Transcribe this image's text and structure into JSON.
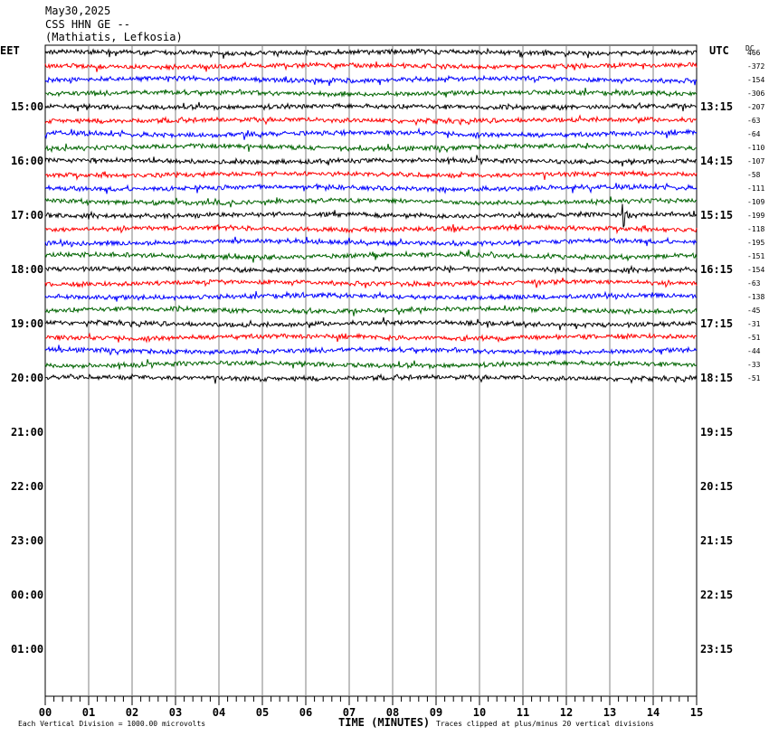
{
  "header": {
    "date": "May30,2025",
    "station": "CSS HHN GE --",
    "location": "(Mathiatis, Lefkosia)"
  },
  "chart_data": {
    "type": "helicorder",
    "left_axis_label": "EET",
    "right_axis_label": "UTC",
    "dc_label": "DC",
    "left_times": [
      "15:00",
      "16:00",
      "17:00",
      "18:00",
      "19:00",
      "20:00",
      "21:00",
      "22:00",
      "23:00",
      "00:00",
      "01:00"
    ],
    "right_times": [
      "13:15",
      "14:15",
      "15:15",
      "16:15",
      "17:15",
      "18:15",
      "19:15",
      "20:15",
      "21:15",
      "22:15",
      "23:15"
    ],
    "x_ticks": [
      "00",
      "01",
      "02",
      "03",
      "04",
      "05",
      "06",
      "07",
      "08",
      "09",
      "10",
      "11",
      "12",
      "13",
      "14",
      "15"
    ],
    "x_range": [
      0,
      15
    ],
    "xlabel": "TIME (MINUTES)",
    "trace_colors": [
      "#000000",
      "#ff0000",
      "#0000ff",
      "#006400"
    ],
    "traces": [
      {
        "dc": "466",
        "color": "#000000"
      },
      {
        "dc": "-372",
        "color": "#ff0000"
      },
      {
        "dc": "-154",
        "color": "#0000ff"
      },
      {
        "dc": "-306",
        "color": "#006400"
      },
      {
        "dc": "-207",
        "color": "#000000"
      },
      {
        "dc": "-63",
        "color": "#ff0000"
      },
      {
        "dc": "-64",
        "color": "#0000ff"
      },
      {
        "dc": "-110",
        "color": "#006400"
      },
      {
        "dc": "-107",
        "color": "#000000"
      },
      {
        "dc": "-58",
        "color": "#ff0000"
      },
      {
        "dc": "-111",
        "color": "#0000ff"
      },
      {
        "dc": "-109",
        "color": "#006400"
      },
      {
        "dc": "-199",
        "color": "#000000"
      },
      {
        "dc": "-118",
        "color": "#ff0000"
      },
      {
        "dc": "-195",
        "color": "#0000ff"
      },
      {
        "dc": "-151",
        "color": "#006400"
      },
      {
        "dc": "-154",
        "color": "#000000"
      },
      {
        "dc": "-63",
        "color": "#ff0000"
      },
      {
        "dc": "-138",
        "color": "#0000ff"
      },
      {
        "dc": "-45",
        "color": "#006400"
      },
      {
        "dc": "-31",
        "color": "#000000"
      },
      {
        "dc": "-51",
        "color": "#ff0000"
      },
      {
        "dc": "-44",
        "color": "#0000ff"
      },
      {
        "dc": "-33",
        "color": "#006400"
      },
      {
        "dc": "-51",
        "color": "#000000"
      }
    ],
    "event": {
      "trace_index": 12,
      "minute": 13.35
    },
    "footnote_left": "Each Vertical Division = 1000.00 microvolts",
    "footnote_right": "Traces clipped at plus/minus 20 vertical divisions"
  }
}
